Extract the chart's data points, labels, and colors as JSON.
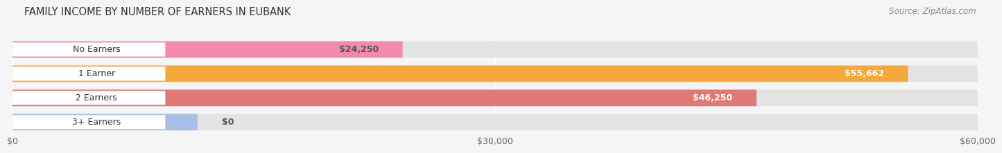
{
  "title": "FAMILY INCOME BY NUMBER OF EARNERS IN EUBANK",
  "source": "Source: ZipAtlas.com",
  "categories": [
    "No Earners",
    "1 Earner",
    "2 Earners",
    "3+ Earners"
  ],
  "values": [
    24250,
    55662,
    46250,
    0
  ],
  "bar_colors": [
    "#f589aa",
    "#f5a83c",
    "#e07878",
    "#a8c0e8"
  ],
  "value_labels": [
    "$24,250",
    "$55,662",
    "$46,250",
    "$0"
  ],
  "value_label_colors": [
    "#555555",
    "#ffffff",
    "#ffffff",
    "#555555"
  ],
  "xlim": [
    0,
    60000
  ],
  "xtick_values": [
    0,
    30000,
    60000
  ],
  "xtick_labels": [
    "$0",
    "$30,000",
    "$60,000"
  ],
  "background_color": "#f5f5f5",
  "bar_background_color": "#e4e4e4",
  "title_fontsize": 10.5,
  "source_fontsize": 8.5,
  "label_fontsize": 9,
  "value_fontsize": 9,
  "bar_height": 0.68,
  "bar_gap": 0.32
}
